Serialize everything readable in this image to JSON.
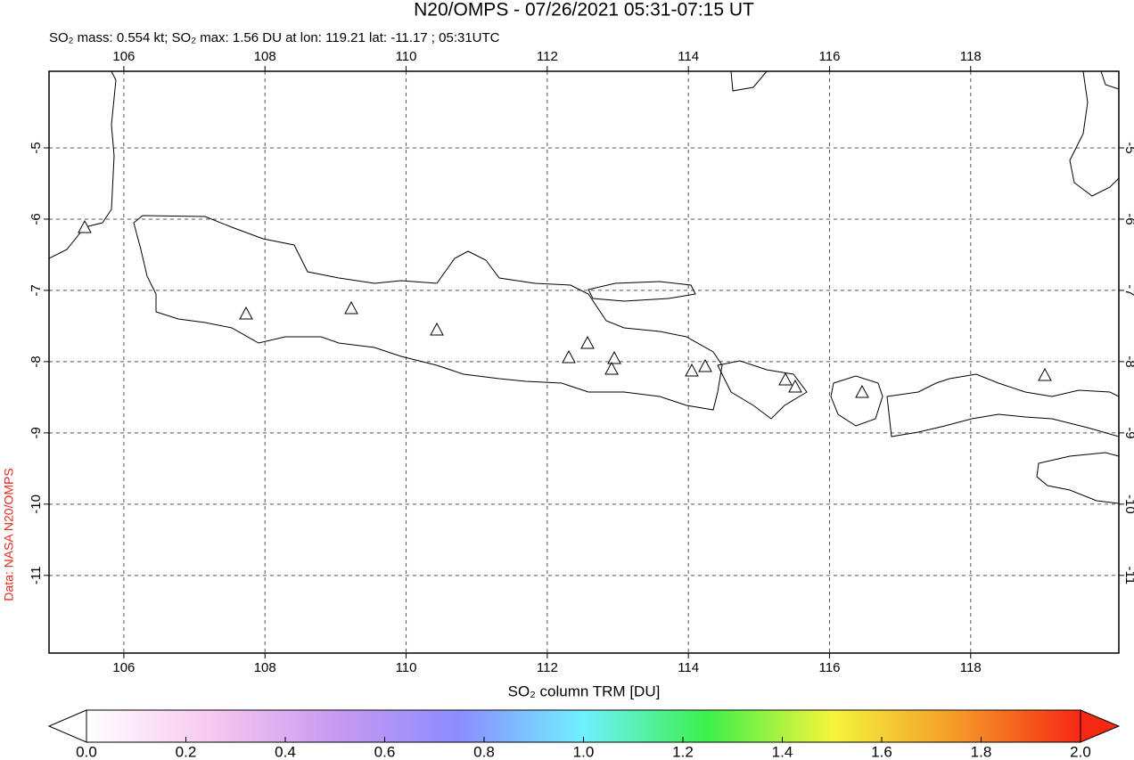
{
  "title": "N20/OMPS - 07/26/2021 05:31-07:15 UT",
  "subtitle": "SO₂ mass: 0.554 kt; SO₂ max: 1.56 DU at lon: 119.21 lat: -11.17 ; 05:31UTC",
  "credit": "Data: NASA N20/OMPS",
  "map": {
    "xlim": [
      104.94,
      120.1
    ],
    "ylim": [
      -12.09,
      -3.925
    ],
    "xticks": [
      106,
      108,
      110,
      112,
      114,
      116,
      118
    ],
    "yticks": [
      -5,
      -6,
      -7,
      -8,
      -9,
      -10,
      -11
    ],
    "grid": true
  },
  "colorbar": {
    "label": "SO₂ column TRM [DU]",
    "lim": [
      0,
      2
    ],
    "colors": [
      "#ffffff",
      "#f7c8f0",
      "#c89af0",
      "#8c8cff",
      "#6ff0ff",
      "#3cf04a",
      "#f5f53c",
      "#f59a28",
      "#f52814"
    ],
    "ticks": [
      {
        "value": 0,
        "label": "0.0"
      },
      {
        "value": 0.2,
        "label": "0.2"
      },
      {
        "value": 0.4,
        "label": "0.4"
      },
      {
        "value": 0.6,
        "label": "0.6"
      },
      {
        "value": 0.8,
        "label": "0.8"
      },
      {
        "value": 1,
        "label": "1.0"
      },
      {
        "value": 1.2,
        "label": "1.2"
      },
      {
        "value": 1.4,
        "label": "1.4"
      },
      {
        "value": 1.6,
        "label": "1.6"
      },
      {
        "value": 1.8,
        "label": "1.8"
      },
      {
        "value": 2,
        "label": "2.0"
      }
    ]
  }
}
